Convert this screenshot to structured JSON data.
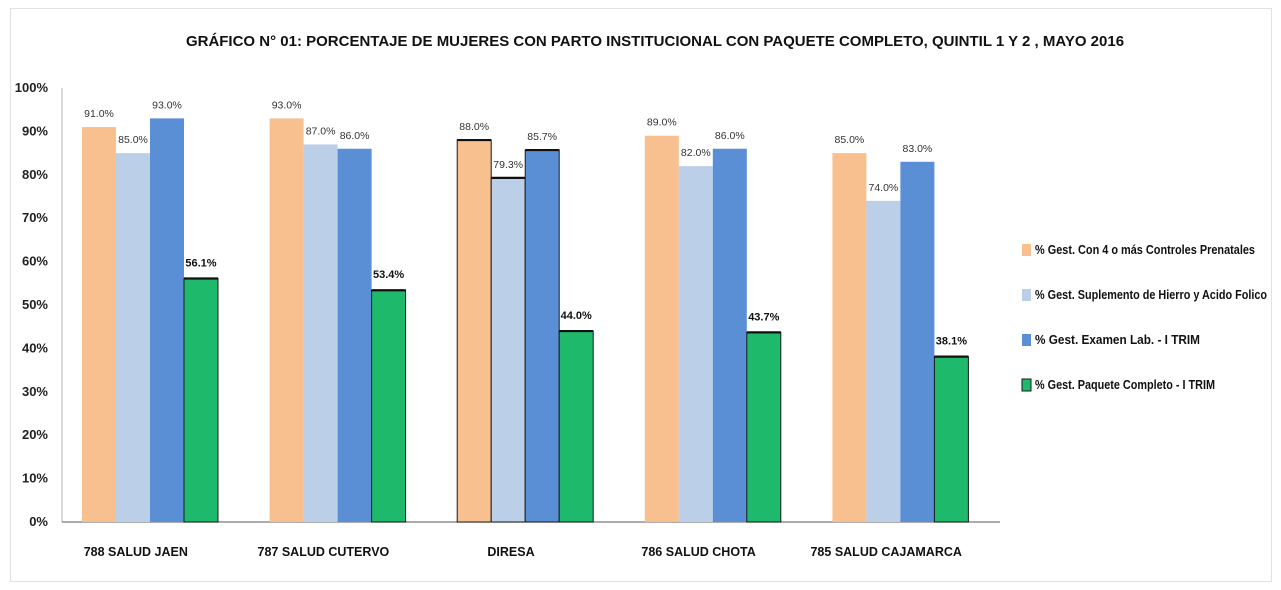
{
  "chart_data": {
    "type": "bar",
    "title": "GRÁFICO N° 01: PORCENTAJE DE MUJERES CON PARTO INSTITUCIONAL CON PAQUETE COMPLETO, QUINTIL 1 Y 2 , MAYO 2016",
    "categories": [
      "788 SALUD JAEN",
      "787 SALUD CUTERVO",
      "DIRESA",
      "786 SALUD CHOTA",
      "785 SALUD CAJAMARCA"
    ],
    "series": [
      {
        "name": "% Gest. Con 4 o más Controles Prenatales",
        "color": "#f8c08f",
        "values": [
          91.0,
          93.0,
          88.0,
          89.0,
          85.0
        ],
        "labels": [
          "91.0%",
          "93.0%",
          "88.0%",
          "89.0%",
          "85.0%"
        ]
      },
      {
        "name": "% Gest. Suplemento de Hierro y Acido Folico",
        "color": "#bccfe8",
        "values": [
          85.0,
          87.0,
          79.3,
          82.0,
          74.0
        ],
        "labels": [
          "85.0%",
          "87.0%",
          "79.3%",
          "82.0%",
          "74.0%"
        ]
      },
      {
        "name": "% Gest. Examen Lab. - I TRIM",
        "color": "#5a8fd6",
        "values": [
          93.0,
          86.0,
          85.7,
          86.0,
          83.0
        ],
        "labels": [
          "93.0%",
          "86.0%",
          "85.7%",
          "86.0%",
          "83.0%"
        ]
      },
      {
        "name": "% Gest. Paquete Completo - I TRIM",
        "color": "#1eb96a",
        "values": [
          56.1,
          53.4,
          44.0,
          43.7,
          38.1
        ],
        "labels": [
          "56.1%",
          "53.4%",
          "44.0%",
          "43.7%",
          "38.1%"
        ]
      }
    ],
    "yticks": [
      "0%",
      "10%",
      "20%",
      "30%",
      "40%",
      "50%",
      "60%",
      "70%",
      "80%",
      "90%",
      "100%"
    ],
    "ylim": [
      0,
      100
    ],
    "xlabel": "",
    "ylabel": "",
    "grid": false,
    "legend_position": "right"
  }
}
